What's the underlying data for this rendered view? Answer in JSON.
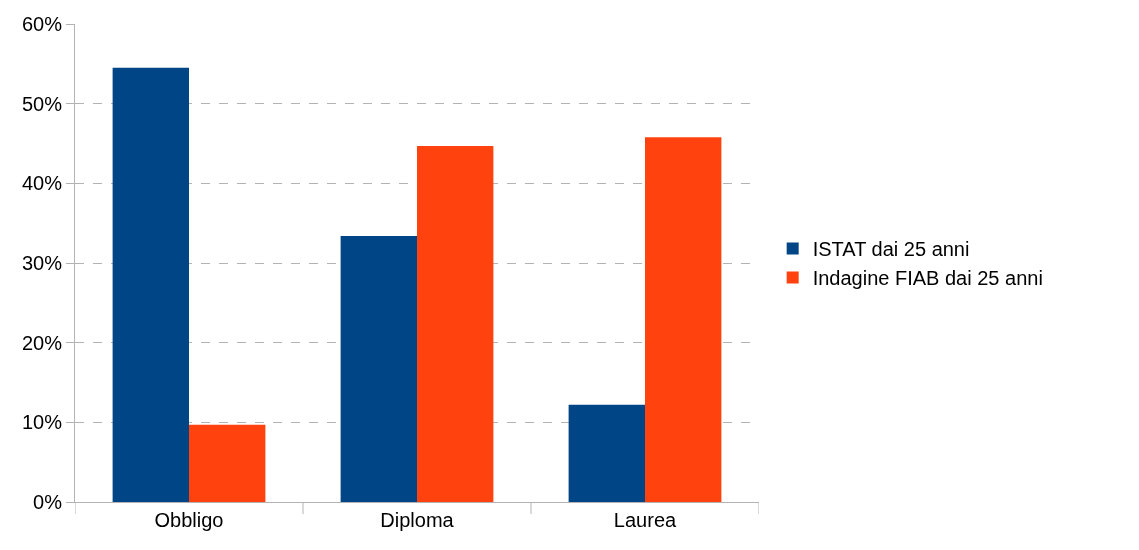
{
  "chart_data": {
    "type": "bar",
    "categories": [
      "Obbligo",
      "Diploma",
      "Laurea"
    ],
    "series": [
      {
        "name": "ISTAT dai 25 anni",
        "color": "#004586",
        "values": [
          54.5,
          33.4,
          12.2
        ]
      },
      {
        "name": "Indagine FIAB dai 25 anni",
        "color": "#ff420e",
        "values": [
          9.7,
          44.7,
          45.8
        ]
      }
    ],
    "ylim": [
      0,
      60
    ],
    "yticks": [
      {
        "value": 0,
        "label": "0%"
      },
      {
        "value": 10,
        "label": "10%"
      },
      {
        "value": 20,
        "label": "20%"
      },
      {
        "value": 30,
        "label": "30%"
      },
      {
        "value": 40,
        "label": "40%"
      },
      {
        "value": 50,
        "label": "50%"
      },
      {
        "value": 60,
        "label": "60%"
      }
    ],
    "grid": "y",
    "legend": "right"
  }
}
